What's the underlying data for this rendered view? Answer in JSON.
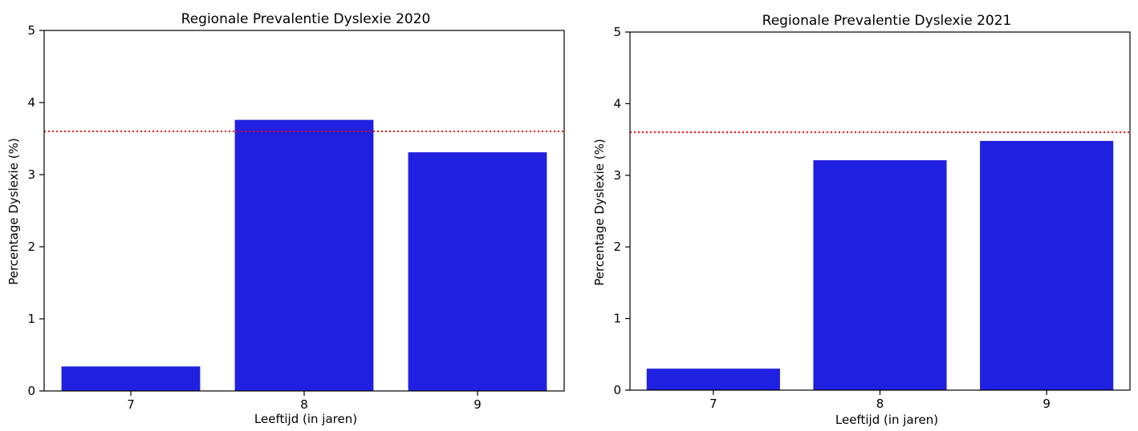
{
  "chart_data": [
    {
      "type": "bar",
      "title": "Regionale Prevalentie Dyslexie 2020",
      "xlabel": "Leeftijd (in jaren)",
      "ylabel": "Percentage Dyslexie (%)",
      "categories": [
        "7",
        "8",
        "9"
      ],
      "values": [
        0.34,
        3.76,
        3.31
      ],
      "ylim": [
        0,
        5
      ],
      "yticks": [
        "0",
        "1",
        "2",
        "3",
        "4",
        "5"
      ],
      "reference_line": {
        "value": 3.6,
        "color": "#ff0000",
        "style": "dotted"
      },
      "bar_color": "#2020e0",
      "grid": false
    },
    {
      "type": "bar",
      "title": "Regionale Prevalentie Dyslexie 2021",
      "xlabel": "Leeftijd (in jaren)",
      "ylabel": "Percentage Dyslexie (%)",
      "categories": [
        "7",
        "8",
        "9"
      ],
      "values": [
        0.3,
        3.21,
        3.48
      ],
      "ylim": [
        0,
        5
      ],
      "yticks": [
        "0",
        "1",
        "2",
        "3",
        "4",
        "5"
      ],
      "reference_line": {
        "value": 3.6,
        "color": "#ff0000",
        "style": "dotted"
      },
      "bar_color": "#2020e0",
      "grid": false
    }
  ]
}
